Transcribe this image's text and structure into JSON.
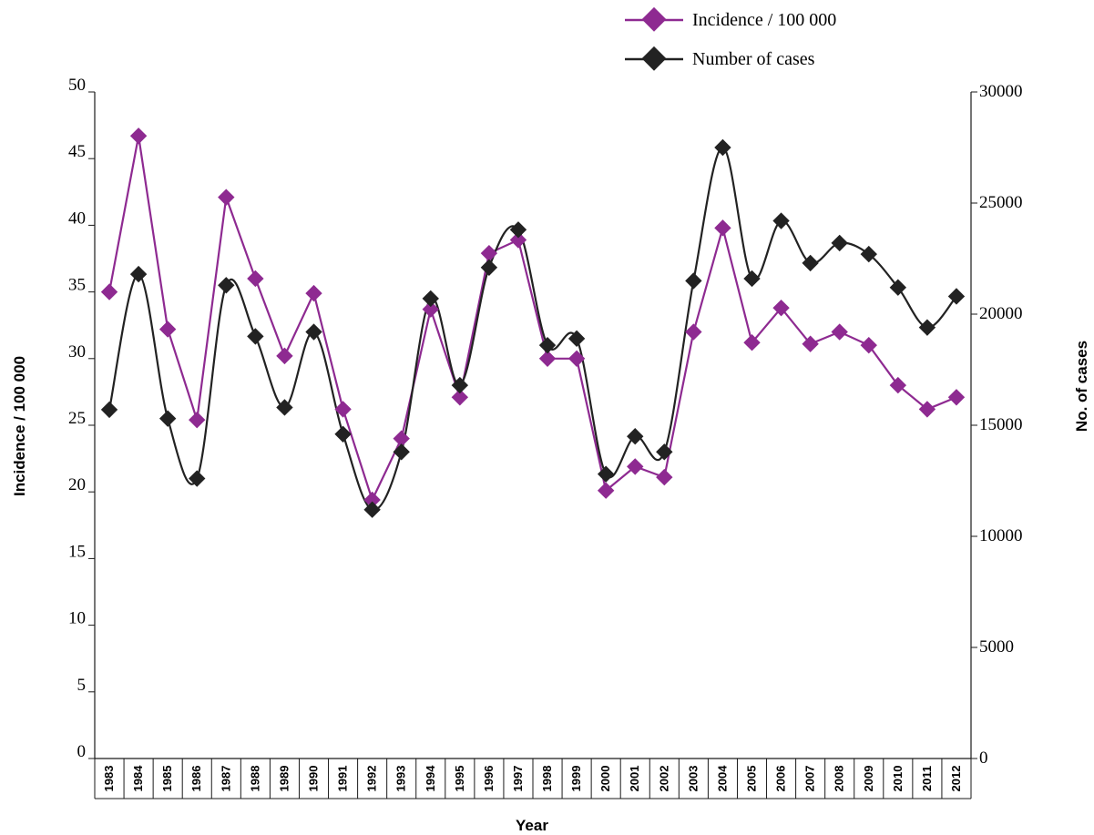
{
  "chart_data": {
    "type": "line",
    "xlabel": "Year",
    "ylabel_left": "Incidence / 100 000",
    "ylabel_right": "No. of cases",
    "y_left_lim": [
      0,
      50
    ],
    "y_left_ticks": [
      "0",
      "5",
      "10",
      "15",
      "20",
      "25",
      "30",
      "35",
      "40",
      "45",
      "50"
    ],
    "y_right_lim": [
      0,
      30000
    ],
    "y_right_ticks": [
      "0",
      "5000",
      "10000",
      "15000",
      "20000",
      "25000",
      "30000"
    ],
    "legend_position": "top-right",
    "grid": false,
    "categories": [
      "1983",
      "1984",
      "1985",
      "1986",
      "1987",
      "1988",
      "1989",
      "1990",
      "1991",
      "1992",
      "1993",
      "1994",
      "1995",
      "1996",
      "1997",
      "1998",
      "1999",
      "2000",
      "2001",
      "2002",
      "2003",
      "2004",
      "2005",
      "2006",
      "2007",
      "2008",
      "2009",
      "2010",
      "2011",
      "2012"
    ],
    "series": [
      {
        "name": "Incidence / 100 000",
        "axis": "left",
        "color": "#8e2a91",
        "smooth": false,
        "values": [
          35.0,
          46.7,
          32.2,
          25.4,
          42.1,
          36.0,
          30.2,
          34.9,
          26.2,
          19.4,
          24.0,
          33.7,
          27.1,
          37.9,
          38.9,
          30.0,
          30.0,
          20.1,
          21.9,
          21.1,
          32.0,
          39.8,
          31.2,
          33.8,
          31.1,
          32.0,
          31.0,
          28.0,
          26.2,
          27.1
        ]
      },
      {
        "name": "Number of cases",
        "axis": "right",
        "color": "#222222",
        "smooth": true,
        "values": [
          15700,
          21800,
          15300,
          12600,
          21300,
          19000,
          15800,
          19200,
          14600,
          11200,
          13800,
          20700,
          16800,
          22100,
          23800,
          18600,
          18900,
          12800,
          14500,
          13800,
          21500,
          27500,
          21600,
          24200,
          22300,
          23200,
          22700,
          21200,
          19400,
          20800
        ]
      }
    ]
  }
}
